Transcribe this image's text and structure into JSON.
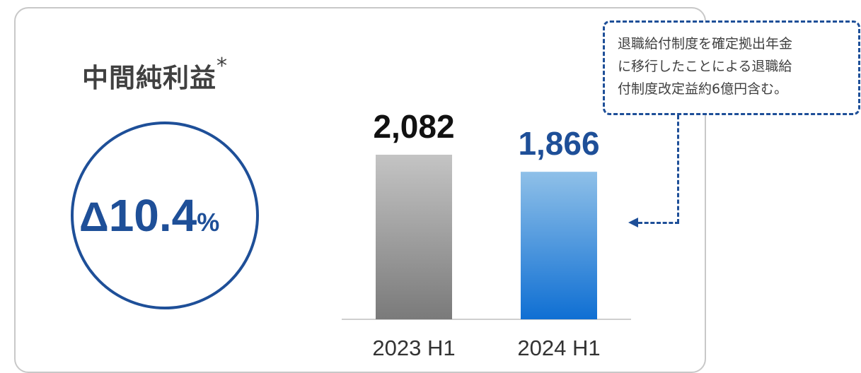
{
  "title": "中間純利益",
  "title_mark": "*",
  "change": {
    "symbol": "Δ",
    "value": "10.4",
    "unit": "%"
  },
  "note": {
    "lines": [
      "退職給付制度を確定拠出年金",
      "に移行したことによる退職給",
      "付制度改定益約6億円含む。"
    ]
  },
  "colors": {
    "accent": "#1e4f98",
    "bar_2023": "#a0a0a0",
    "bar_2024": "#2e8ad8"
  },
  "chart_data": {
    "type": "bar",
    "categories": [
      "2023 H1",
      "2024 H1"
    ],
    "values": [
      2082,
      1866
    ],
    "value_labels": [
      "2,082",
      "1,866"
    ],
    "title": "",
    "xlabel": "",
    "ylabel": "",
    "ylim": [
      0,
      2400
    ],
    "grid": false
  }
}
